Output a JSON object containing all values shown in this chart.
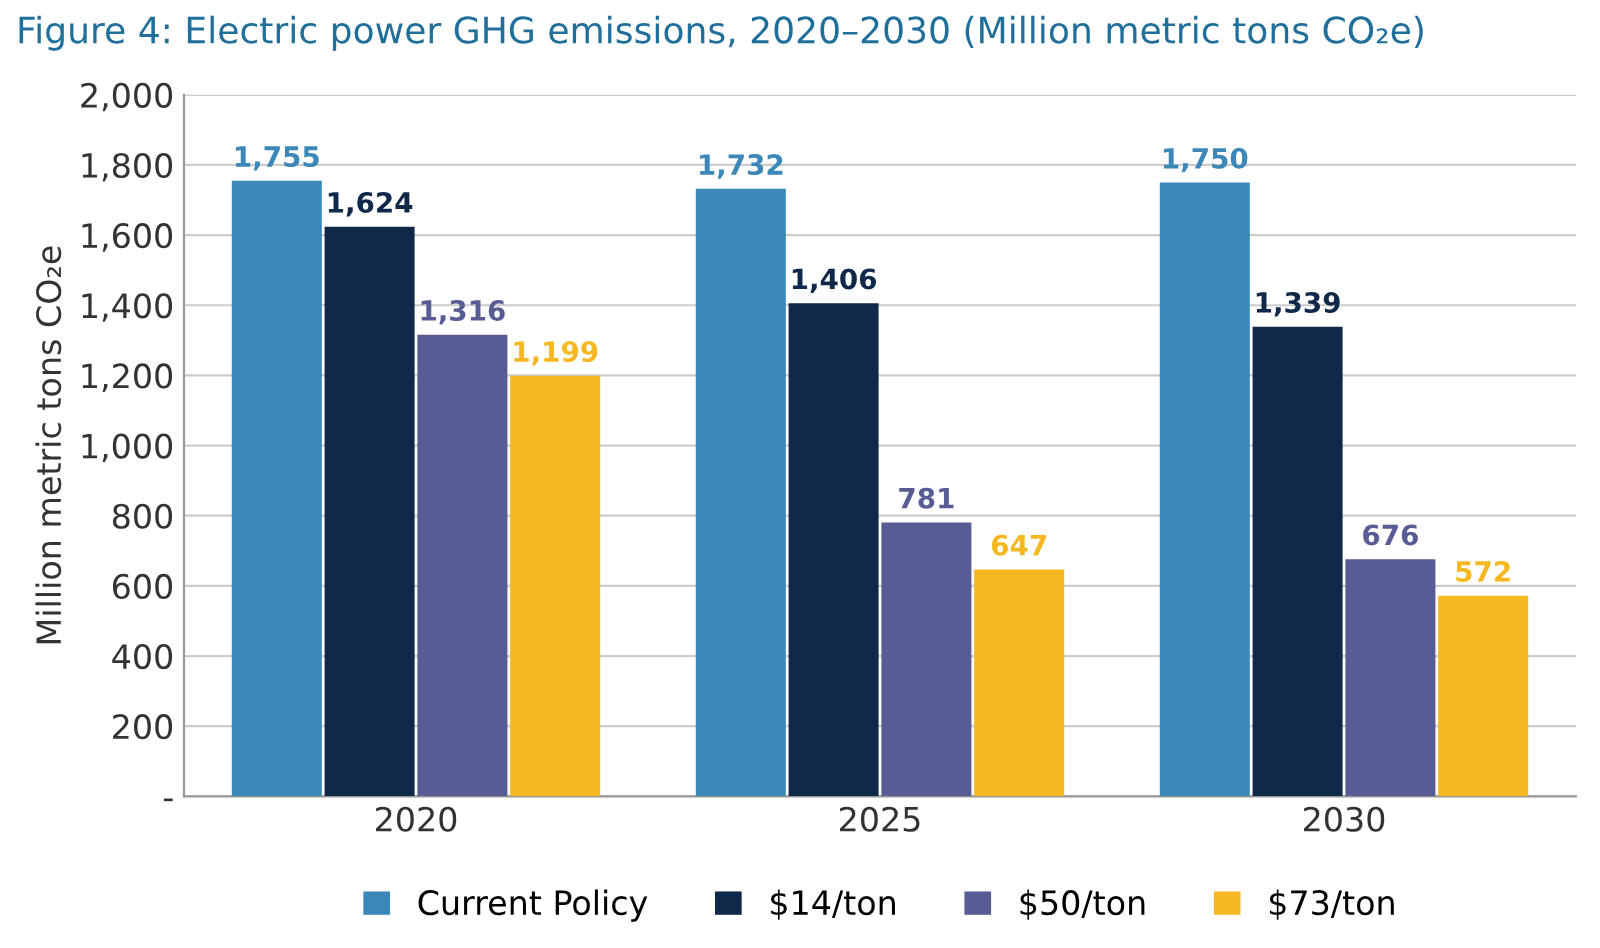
{
  "chart_data": {
    "type": "bar",
    "title": "Figure 4: Electric power GHG emissions, 2020–2030 (Million metric tons CO₂e)",
    "ylabel": "Million metric tons CO₂e",
    "categories": [
      "2020",
      "2025",
      "2030"
    ],
    "series": [
      {
        "name": "Current Policy",
        "color": "#3a87b8",
        "values": [
          1755,
          1732,
          1750
        ],
        "value_labels": [
          "1,755",
          "1,732",
          "1,750"
        ]
      },
      {
        "name": "$14/ton",
        "color": "#10284a",
        "values": [
          1624,
          1406,
          1339
        ],
        "value_labels": [
          "1,624",
          "1,406",
          "1,339"
        ]
      },
      {
        "name": "$50/ton",
        "color": "#585c95",
        "values": [
          1316,
          781,
          676
        ],
        "value_labels": [
          "1,316",
          "781",
          "676"
        ]
      },
      {
        "name": "$73/ton",
        "color": "#f5b820",
        "values": [
          1199,
          647,
          572
        ],
        "value_labels": [
          "1,199",
          "647",
          "572"
        ]
      }
    ],
    "ylim": [
      0,
      2000
    ],
    "yticks": [
      {
        "value": 0,
        "label": "-"
      },
      200,
      400,
      600,
      800,
      {
        "value": 1000,
        "label": "1,000"
      },
      {
        "value": 1200,
        "label": "1,200"
      },
      {
        "value": 1400,
        "label": "1,400"
      },
      {
        "value": 1600,
        "label": "1,600"
      },
      {
        "value": 1800,
        "label": "1,800"
      },
      {
        "value": 2000,
        "label": "2,000"
      }
    ],
    "grid": "y",
    "legend": "bottom"
  }
}
